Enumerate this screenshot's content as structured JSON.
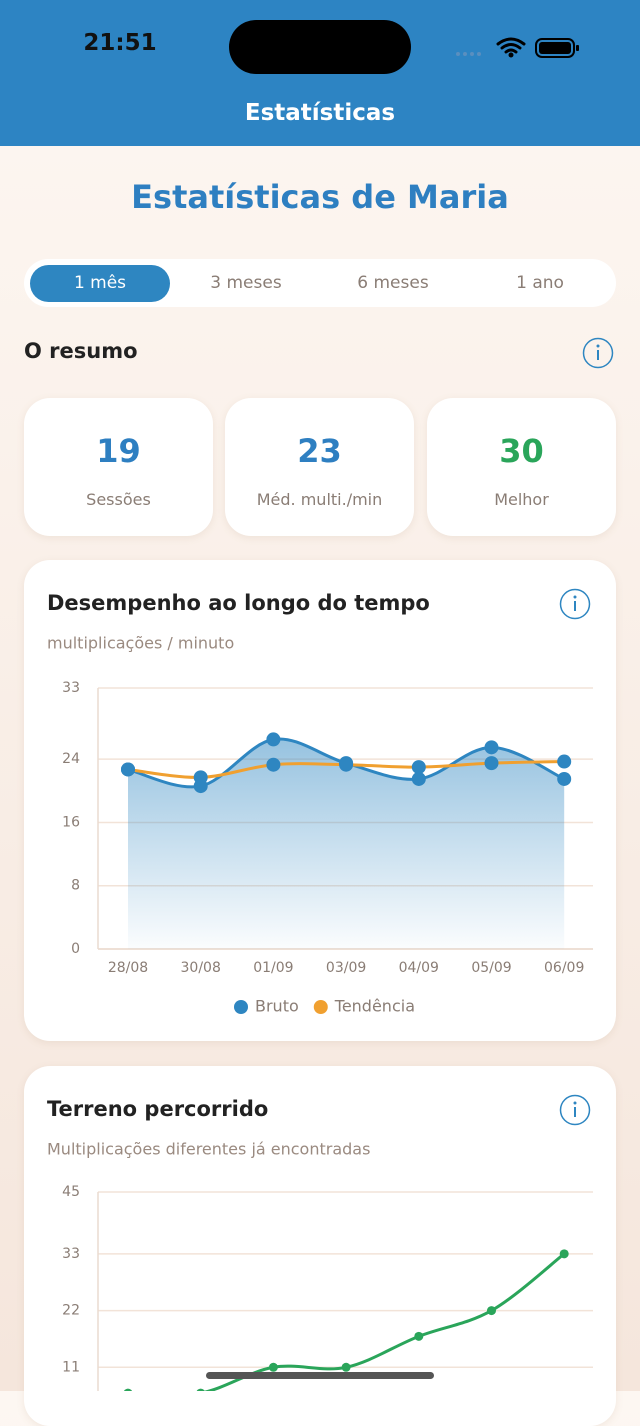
{
  "status_bar": {
    "time": "21:51"
  },
  "nav_bar": {
    "title": "Estatísticas"
  },
  "page": {
    "title": "Estatísticas de Maria"
  },
  "tabs": {
    "items": [
      "1 mês",
      "3 meses",
      "6 meses",
      "1 ano"
    ],
    "selected": 0
  },
  "summary": {
    "title": "O resumo",
    "cards": [
      {
        "value": 19,
        "label": "Sessões",
        "color": "#2e7fc1"
      },
      {
        "value": 23,
        "label": "Méd. multi./min",
        "color": "#2e7fc1"
      },
      {
        "value": 30,
        "label": "Melhor",
        "color": "#2aa55a"
      }
    ]
  },
  "chart_data": [
    {
      "type": "line",
      "title": "Desempenho ao longo do tempo",
      "subtitle": "multiplicações / minuto",
      "categories": [
        "28/08",
        "30/08",
        "01/09",
        "03/09",
        "04/09",
        "05/09",
        "06/09"
      ],
      "series": [
        {
          "name": "Bruto",
          "color": "#2e86c1",
          "values": [
            22.7,
            20.6,
            26.5,
            23.5,
            21.5,
            25.5,
            21.5
          ],
          "area": true
        },
        {
          "name": "Tendência",
          "color": "#f0a030",
          "marker_color": "#2e86c1",
          "values": [
            22.7,
            21.7,
            23.3,
            23.3,
            23.0,
            23.5,
            23.7
          ]
        }
      ],
      "ylim": [
        0,
        33
      ],
      "yticks": [
        0,
        8,
        16,
        24,
        33
      ],
      "grid": true,
      "legend": "bottom"
    },
    {
      "type": "line",
      "title": "Terreno percorrido",
      "subtitle": "Multiplicações diferentes já encontradas",
      "categories": [
        null,
        null,
        null,
        null,
        null,
        null,
        null
      ],
      "series": [
        {
          "color": "#2aa55a",
          "values": [
            6,
            6,
            11,
            11,
            17,
            22,
            33
          ]
        }
      ],
      "ylim": [
        0,
        45
      ],
      "yticks": [
        11,
        22,
        33,
        45
      ],
      "grid": true
    }
  ]
}
